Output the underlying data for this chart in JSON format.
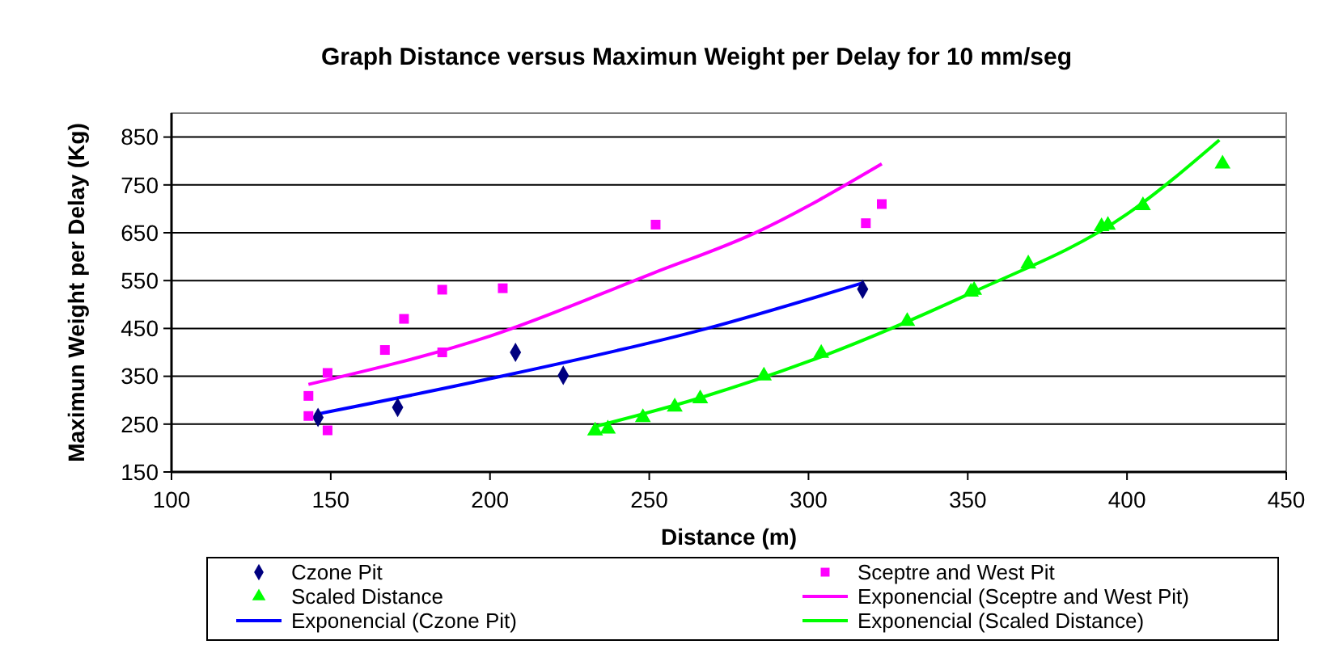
{
  "chart_data": {
    "type": "scatter",
    "title": "Graph Distance versus Maximun Weight per Delay for 10 mm/seg",
    "xlabel": "Distance (m)",
    "ylabel": "Maximun Weight per Delay (Kg)",
    "xlim": [
      100,
      450
    ],
    "xticks": [
      100,
      150,
      200,
      250,
      300,
      350,
      400,
      450
    ],
    "ylim": [
      150,
      900
    ],
    "yticks": [
      150,
      250,
      350,
      450,
      550,
      650,
      750,
      850
    ],
    "grid": "y",
    "legend": "bottom",
    "series": [
      {
        "name": "Czone Pit",
        "marker": "diamond",
        "color": "#000080",
        "x": [
          146,
          171,
          208,
          223,
          317
        ],
        "values": [
          264,
          285,
          400,
          352,
          532
        ]
      },
      {
        "name": "Sceptre and West Pit",
        "marker": "square",
        "color": "#ff00ff",
        "x": [
          143,
          143,
          149,
          149,
          167,
          173,
          185,
          185,
          204,
          252,
          318,
          323
        ],
        "values": [
          309,
          267,
          357,
          237,
          405,
          470,
          531,
          400,
          534,
          667,
          670,
          710
        ]
      },
      {
        "name": "Scaled Distance",
        "marker": "triangle",
        "color": "#00ff00",
        "x": [
          233,
          237,
          248,
          258,
          266,
          286,
          304,
          331,
          351,
          352,
          369,
          392,
          394,
          405,
          430
        ],
        "values": [
          236,
          240,
          264,
          286,
          303,
          351,
          398,
          465,
          526,
          530,
          585,
          663,
          666,
          707,
          794
        ]
      },
      {
        "name": "Exponencial (Sceptre and West Pit)",
        "type": "line",
        "marker": "none",
        "color": "#ff00ff",
        "x": [
          143,
          200,
          251,
          283,
          323
        ],
        "values": [
          333,
          434,
          565,
          649,
          794
        ]
      },
      {
        "name": "Exponencial (Czone Pit)",
        "type": "line",
        "marker": "none",
        "color": "#0000ff",
        "x": [
          145,
          200,
          267,
          317
        ],
        "values": [
          270,
          345,
          448,
          545
        ]
      },
      {
        "name": "Exponencial (Scaled Distance)",
        "type": "line",
        "marker": "none",
        "color": "#00ff00",
        "x": [
          233,
          266,
          300,
          350,
          400,
          429
        ],
        "values": [
          245,
          305,
          381,
          521,
          689,
          844
        ]
      }
    ]
  }
}
